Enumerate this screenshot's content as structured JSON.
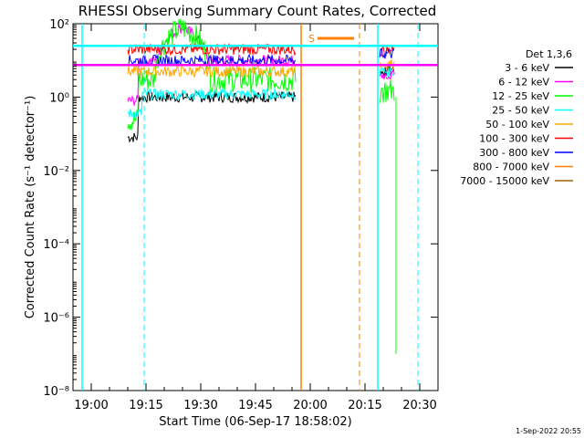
{
  "chart_data": {
    "type": "line",
    "title": "RHESSI Observing Summary Count Rates, Corrected",
    "xlabel": "Start Time (06-Sep-17 18:58:02)",
    "ylabel": "Corrected Count Rate (s⁻¹ detector⁻¹)",
    "y_scale": "log",
    "ylim": [
      1e-08,
      100
    ],
    "xlim_minutes": [
      -5,
      95
    ],
    "x_ticks": [
      {
        "t": 0,
        "label": "19:00"
      },
      {
        "t": 15,
        "label": "19:15"
      },
      {
        "t": 30,
        "label": "19:30"
      },
      {
        "t": 45,
        "label": "19:45"
      },
      {
        "t": 60,
        "label": "20:00"
      },
      {
        "t": 75,
        "label": "20:15"
      },
      {
        "t": 90,
        "label": "20:30"
      }
    ],
    "y_ticks": [
      {
        "exp": 2,
        "label": "10²"
      },
      {
        "exp": 0,
        "label": "10⁰"
      },
      {
        "exp": -2,
        "label": "10⁻²"
      },
      {
        "exp": -4,
        "label": "10⁻⁴"
      },
      {
        "exp": -6,
        "label": "10⁻⁶"
      },
      {
        "exp": -8,
        "label": "10⁻⁸"
      }
    ],
    "legend": {
      "title": "Det 1,3,6",
      "position": "right",
      "entries": [
        {
          "label": "3 - 6 keV",
          "color": "#000000"
        },
        {
          "label": "6 - 12 keV",
          "color": "#ff00ff"
        },
        {
          "label": "12 - 25 keV",
          "color": "#00ff00"
        },
        {
          "label": "25 - 50 keV",
          "color": "#00ffff"
        },
        {
          "label": "50 - 100 keV",
          "color": "#ffa500"
        },
        {
          "label": "100 - 300 keV",
          "color": "#ff0000"
        },
        {
          "label": "300 - 800 keV",
          "color": "#0000ff"
        },
        {
          "label": "800 - 7000 keV",
          "color": "#ff8000"
        },
        {
          "label": "7000 - 15000 keV",
          "color": "#a06000"
        }
      ]
    },
    "segments": [
      {
        "t0": 10,
        "t1": 56,
        "levels": {
          "black": 1.0,
          "magenta": 10,
          "green": 3.0,
          "cyan": 1.2,
          "orange": 5.0,
          "red": 20,
          "blue": 10
        }
      },
      {
        "t0": 79,
        "t1": 83,
        "levels": {
          "black": 5.0,
          "magenta": 4.0,
          "green": 1.5,
          "cyan": 5.0,
          "orange": 8.0,
          "red": 18,
          "blue": 15
        }
      }
    ],
    "flare_peak": {
      "t": 25,
      "value": 80
    },
    "markers": {
      "saa_label": "S",
      "saa_bar": {
        "t0": 62,
        "t1": 72,
        "value": 40
      },
      "cyan_dashed_t": [
        14.5,
        89.5
      ],
      "cyan_solid_t": [
        -2.5,
        78.5
      ],
      "orange_solid_t": [
        57.5
      ],
      "orange_dashed_t": [
        73.5
      ],
      "cyan_line": {
        "value": 25
      },
      "magenta_line": {
        "value": 7.5
      }
    },
    "footer_date": "1-Sep-2022 20:55"
  }
}
